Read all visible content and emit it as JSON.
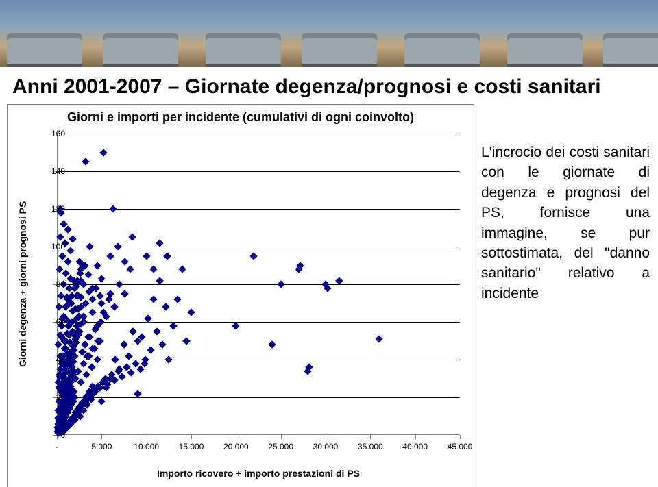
{
  "banner": {
    "car_positions": [
      10,
      150,
      300,
      440,
      590,
      740,
      880
    ],
    "car_color": "#9aa6aa"
  },
  "page": {
    "title": "Anni 2001-2007 – Giornate degenza/prognosi e costi sanitari"
  },
  "chart": {
    "type": "scatter",
    "title": "Giorni e importi per incidente (cumulativi di ogni coinvolto)",
    "xlabel": "Importo ricovero + importo prestazioni di PS",
    "ylabel": "Giorni degenza + giorni prognosi PS",
    "xlim": [
      0,
      45000
    ],
    "ylim": [
      0,
      160
    ],
    "xticks": [
      0,
      5000,
      10000,
      15000,
      20000,
      25000,
      30000,
      35000,
      40000,
      45000
    ],
    "xtick_labels": [
      "-",
      "5.000",
      "10.000",
      "15.000",
      "20.000",
      "25.000",
      "30.000",
      "35.000",
      "40.000",
      "45.000"
    ],
    "yticks": [
      0,
      20,
      40,
      60,
      80,
      100,
      120,
      140,
      160
    ],
    "ytick_labels": [
      "0",
      "20",
      "40",
      "60",
      "80",
      "100",
      "120",
      "140",
      "160"
    ],
    "grid_y": [
      20,
      40,
      60,
      80,
      100,
      120,
      140,
      160
    ],
    "grid_color": "#000000",
    "marker": {
      "shape": "diamond",
      "size": 8,
      "color": "#000080"
    },
    "tick_fontsize": 12,
    "title_fontsize": 18,
    "label_fontsize": 14,
    "background_color": "#ffffff",
    "border_color": "#808080",
    "points": [
      [
        90,
        2
      ],
      [
        120,
        3
      ],
      [
        150,
        2
      ],
      [
        180,
        4
      ],
      [
        210,
        3
      ],
      [
        240,
        5
      ],
      [
        270,
        4
      ],
      [
        300,
        6
      ],
      [
        330,
        5
      ],
      [
        360,
        7
      ],
      [
        390,
        6
      ],
      [
        420,
        8
      ],
      [
        450,
        7
      ],
      [
        480,
        9
      ],
      [
        510,
        8
      ],
      [
        540,
        10
      ],
      [
        570,
        9
      ],
      [
        600,
        11
      ],
      [
        630,
        10
      ],
      [
        660,
        12
      ],
      [
        690,
        11
      ],
      [
        720,
        13
      ],
      [
        750,
        12
      ],
      [
        780,
        14
      ],
      [
        810,
        13
      ],
      [
        840,
        15
      ],
      [
        870,
        14
      ],
      [
        900,
        16
      ],
      [
        930,
        15
      ],
      [
        960,
        17
      ],
      [
        990,
        16
      ],
      [
        1020,
        18
      ],
      [
        1050,
        17
      ],
      [
        1080,
        19
      ],
      [
        1110,
        18
      ],
      [
        1140,
        20
      ],
      [
        1170,
        19
      ],
      [
        1200,
        21
      ],
      [
        1230,
        20
      ],
      [
        1260,
        22
      ],
      [
        1290,
        21
      ],
      [
        1320,
        23
      ],
      [
        1350,
        22
      ],
      [
        1380,
        24
      ],
      [
        1410,
        23
      ],
      [
        1440,
        25
      ],
      [
        1470,
        24
      ],
      [
        1500,
        26
      ],
      [
        100,
        4
      ],
      [
        200,
        3
      ],
      [
        300,
        7
      ],
      [
        400,
        5
      ],
      [
        500,
        9
      ],
      [
        600,
        6
      ],
      [
        700,
        11
      ],
      [
        800,
        8
      ],
      [
        900,
        13
      ],
      [
        1000,
        10
      ],
      [
        1100,
        15
      ],
      [
        1200,
        12
      ],
      [
        1300,
        17
      ],
      [
        1400,
        14
      ],
      [
        1500,
        19
      ],
      [
        1600,
        16
      ],
      [
        1700,
        21
      ],
      [
        1800,
        18
      ],
      [
        1900,
        23
      ],
      [
        2000,
        20
      ],
      [
        120,
        6
      ],
      [
        250,
        8
      ],
      [
        380,
        10
      ],
      [
        510,
        12
      ],
      [
        640,
        14
      ],
      [
        770,
        16
      ],
      [
        900,
        18
      ],
      [
        1030,
        20
      ],
      [
        1160,
        22
      ],
      [
        1290,
        24
      ],
      [
        1420,
        26
      ],
      [
        1550,
        28
      ],
      [
        1680,
        30
      ],
      [
        1810,
        32
      ],
      [
        1940,
        34
      ],
      [
        150,
        9
      ],
      [
        320,
        12
      ],
      [
        490,
        15
      ],
      [
        660,
        18
      ],
      [
        830,
        21
      ],
      [
        1000,
        24
      ],
      [
        1170,
        27
      ],
      [
        1340,
        30
      ],
      [
        1510,
        33
      ],
      [
        1680,
        36
      ],
      [
        1850,
        39
      ],
      [
        2020,
        42
      ],
      [
        180,
        13
      ],
      [
        400,
        17
      ],
      [
        620,
        21
      ],
      [
        840,
        25
      ],
      [
        1060,
        29
      ],
      [
        1280,
        33
      ],
      [
        1500,
        37
      ],
      [
        1720,
        41
      ],
      [
        1940,
        45
      ],
      [
        2160,
        49
      ],
      [
        2380,
        53
      ],
      [
        200,
        18
      ],
      [
        450,
        23
      ],
      [
        700,
        28
      ],
      [
        950,
        33
      ],
      [
        1200,
        38
      ],
      [
        1450,
        43
      ],
      [
        1700,
        48
      ],
      [
        1950,
        53
      ],
      [
        2200,
        58
      ],
      [
        2450,
        63
      ],
      [
        2700,
        68
      ],
      [
        250,
        25
      ],
      [
        550,
        31
      ],
      [
        850,
        37
      ],
      [
        1150,
        43
      ],
      [
        1450,
        49
      ],
      [
        1750,
        55
      ],
      [
        2050,
        61
      ],
      [
        2350,
        67
      ],
      [
        2650,
        73
      ],
      [
        300,
        32
      ],
      [
        650,
        39
      ],
      [
        1000,
        46
      ],
      [
        1350,
        53
      ],
      [
        1700,
        60
      ],
      [
        2050,
        67
      ],
      [
        2400,
        74
      ],
      [
        2750,
        81
      ],
      [
        400,
        42
      ],
      [
        850,
        50
      ],
      [
        1300,
        58
      ],
      [
        1750,
        66
      ],
      [
        2200,
        74
      ],
      [
        2650,
        82
      ],
      [
        3100,
        90
      ],
      [
        500,
        52
      ],
      [
        1050,
        61
      ],
      [
        1600,
        70
      ],
      [
        2150,
        79
      ],
      [
        2700,
        88
      ],
      [
        600,
        62
      ],
      [
        1250,
        72
      ],
      [
        1900,
        82
      ],
      [
        2550,
        92
      ],
      [
        350,
        120
      ],
      [
        450,
        118
      ],
      [
        2000,
        8
      ],
      [
        2200,
        11
      ],
      [
        2400,
        14
      ],
      [
        2600,
        10
      ],
      [
        2800,
        17
      ],
      [
        3000,
        13
      ],
      [
        3200,
        20
      ],
      [
        3400,
        16
      ],
      [
        3600,
        23
      ],
      [
        3800,
        19
      ],
      [
        4000,
        26
      ],
      [
        2100,
        30
      ],
      [
        2400,
        34
      ],
      [
        2700,
        28
      ],
      [
        3000,
        38
      ],
      [
        3300,
        32
      ],
      [
        3600,
        42
      ],
      [
        3900,
        36
      ],
      [
        4200,
        46
      ],
      [
        4500,
        40
      ],
      [
        4800,
        50
      ],
      [
        2500,
        55
      ],
      [
        3000,
        60
      ],
      [
        3500,
        52
      ],
      [
        4000,
        65
      ],
      [
        4500,
        58
      ],
      [
        5000,
        70
      ],
      [
        5500,
        63
      ],
      [
        6000,
        75
      ],
      [
        3000,
        80
      ],
      [
        3500,
        85
      ],
      [
        4000,
        78
      ],
      [
        4500,
        90
      ],
      [
        5000,
        83
      ],
      [
        3200,
        145
      ],
      [
        3700,
        100
      ],
      [
        5000,
        18
      ],
      [
        5500,
        25
      ],
      [
        6000,
        30
      ],
      [
        6300,
        120
      ],
      [
        6500,
        40
      ],
      [
        7000,
        35
      ],
      [
        7500,
        48
      ],
      [
        8000,
        42
      ],
      [
        8500,
        55
      ],
      [
        9000,
        50
      ],
      [
        5200,
        65
      ],
      [
        5200,
        150
      ],
      [
        5800,
        72
      ],
      [
        6400,
        68
      ],
      [
        7000,
        80
      ],
      [
        7600,
        75
      ],
      [
        8200,
        88
      ],
      [
        6000,
        95
      ],
      [
        6800,
        100
      ],
      [
        7600,
        92
      ],
      [
        8400,
        105
      ],
      [
        9000,
        22
      ],
      [
        9500,
        52
      ],
      [
        9800,
        38
      ],
      [
        10200,
        62
      ],
      [
        10500,
        45
      ],
      [
        10800,
        72
      ],
      [
        11200,
        55
      ],
      [
        11500,
        82
      ],
      [
        11800,
        48
      ],
      [
        12200,
        68
      ],
      [
        10000,
        95
      ],
      [
        10800,
        88
      ],
      [
        11500,
        102
      ],
      [
        12300,
        95
      ],
      [
        12500,
        40
      ],
      [
        13000,
        58
      ],
      [
        13500,
        72
      ],
      [
        14000,
        88
      ],
      [
        14500,
        50
      ],
      [
        15000,
        65
      ],
      [
        20000,
        58
      ],
      [
        22000,
        95
      ],
      [
        24000,
        48
      ],
      [
        25000,
        80
      ],
      [
        1500,
        44
      ],
      [
        1800,
        47
      ],
      [
        2100,
        51
      ],
      [
        2400,
        55
      ],
      [
        2700,
        59
      ],
      [
        3000,
        63
      ],
      [
        1200,
        40
      ],
      [
        1000,
        35
      ],
      [
        800,
        31
      ],
      [
        600,
        27
      ],
      [
        2800,
        44
      ],
      [
        3100,
        48
      ],
      [
        3400,
        42
      ],
      [
        3700,
        52
      ],
      [
        4000,
        46
      ],
      [
        4300,
        56
      ],
      [
        4600,
        50
      ],
      [
        4900,
        60
      ],
      [
        1400,
        70
      ],
      [
        1700,
        74
      ],
      [
        2000,
        78
      ],
      [
        2300,
        82
      ],
      [
        2600,
        86
      ],
      [
        2900,
        90
      ],
      [
        3200,
        70
      ],
      [
        3600,
        76
      ],
      [
        4000,
        72
      ],
      [
        4400,
        78
      ],
      [
        4800,
        74
      ],
      [
        27000,
        88
      ],
      [
        27200,
        90
      ],
      [
        28000,
        34
      ],
      [
        28200,
        36
      ],
      [
        30000,
        80
      ],
      [
        30200,
        78
      ],
      [
        31500,
        82
      ],
      [
        36000,
        51
      ],
      [
        180,
        1
      ],
      [
        220,
        2
      ],
      [
        260,
        1
      ],
      [
        340,
        2
      ],
      [
        380,
        1
      ],
      [
        420,
        3
      ],
      [
        460,
        2
      ],
      [
        520,
        3
      ],
      [
        560,
        2
      ],
      [
        680,
        3
      ],
      [
        720,
        2
      ],
      [
        820,
        4
      ],
      [
        880,
        3
      ],
      [
        920,
        5
      ],
      [
        980,
        4
      ],
      [
        1060,
        5
      ],
      [
        1120,
        4
      ],
      [
        1180,
        6
      ],
      [
        1240,
        5
      ],
      [
        1360,
        6
      ],
      [
        1460,
        7
      ],
      [
        1520,
        6
      ],
      [
        1640,
        8
      ],
      [
        1780,
        9
      ],
      [
        1880,
        10
      ],
      [
        2060,
        12
      ],
      [
        2140,
        11
      ],
      [
        2280,
        13
      ],
      [
        2380,
        12
      ],
      [
        2500,
        15
      ],
      [
        2640,
        14
      ],
      [
        2880,
        16
      ],
      [
        3040,
        18
      ],
      [
        3180,
        17
      ],
      [
        3320,
        20
      ],
      [
        3460,
        19
      ],
      [
        3700,
        22
      ],
      [
        3840,
        21
      ],
      [
        4100,
        24
      ],
      [
        4300,
        23
      ],
      [
        4600,
        26
      ],
      [
        4800,
        25
      ],
      [
        5100,
        28
      ],
      [
        5400,
        30
      ],
      [
        5700,
        27
      ],
      [
        6100,
        32
      ],
      [
        6400,
        29
      ],
      [
        6900,
        34
      ],
      [
        7300,
        31
      ],
      [
        7800,
        36
      ],
      [
        8300,
        33
      ],
      [
        8800,
        38
      ],
      [
        9300,
        35
      ],
      [
        9900,
        40
      ],
      [
        140,
        28
      ],
      [
        280,
        31
      ],
      [
        420,
        35
      ],
      [
        560,
        38
      ],
      [
        700,
        42
      ],
      [
        840,
        46
      ],
      [
        980,
        50
      ],
      [
        1120,
        54
      ],
      [
        160,
        48
      ],
      [
        360,
        53
      ],
      [
        560,
        58
      ],
      [
        760,
        63
      ],
      [
        960,
        68
      ],
      [
        1160,
        73
      ],
      [
        1360,
        78
      ],
      [
        1560,
        83
      ],
      [
        220,
        68
      ],
      [
        480,
        74
      ],
      [
        740,
        80
      ],
      [
        1000,
        86
      ],
      [
        1260,
        92
      ],
      [
        1520,
        98
      ],
      [
        1780,
        104
      ],
      [
        300,
        88
      ],
      [
        620,
        95
      ],
      [
        940,
        102
      ],
      [
        1260,
        109
      ],
      [
        400,
        105
      ],
      [
        800,
        112
      ]
    ]
  },
  "side": {
    "text": "L'incrocio dei costi sanitari con le giornate di degenza e prognosi del PS, fornisce una immagine, se pur sottostimata, del \"danno sanitario\" relativo a incidente"
  }
}
